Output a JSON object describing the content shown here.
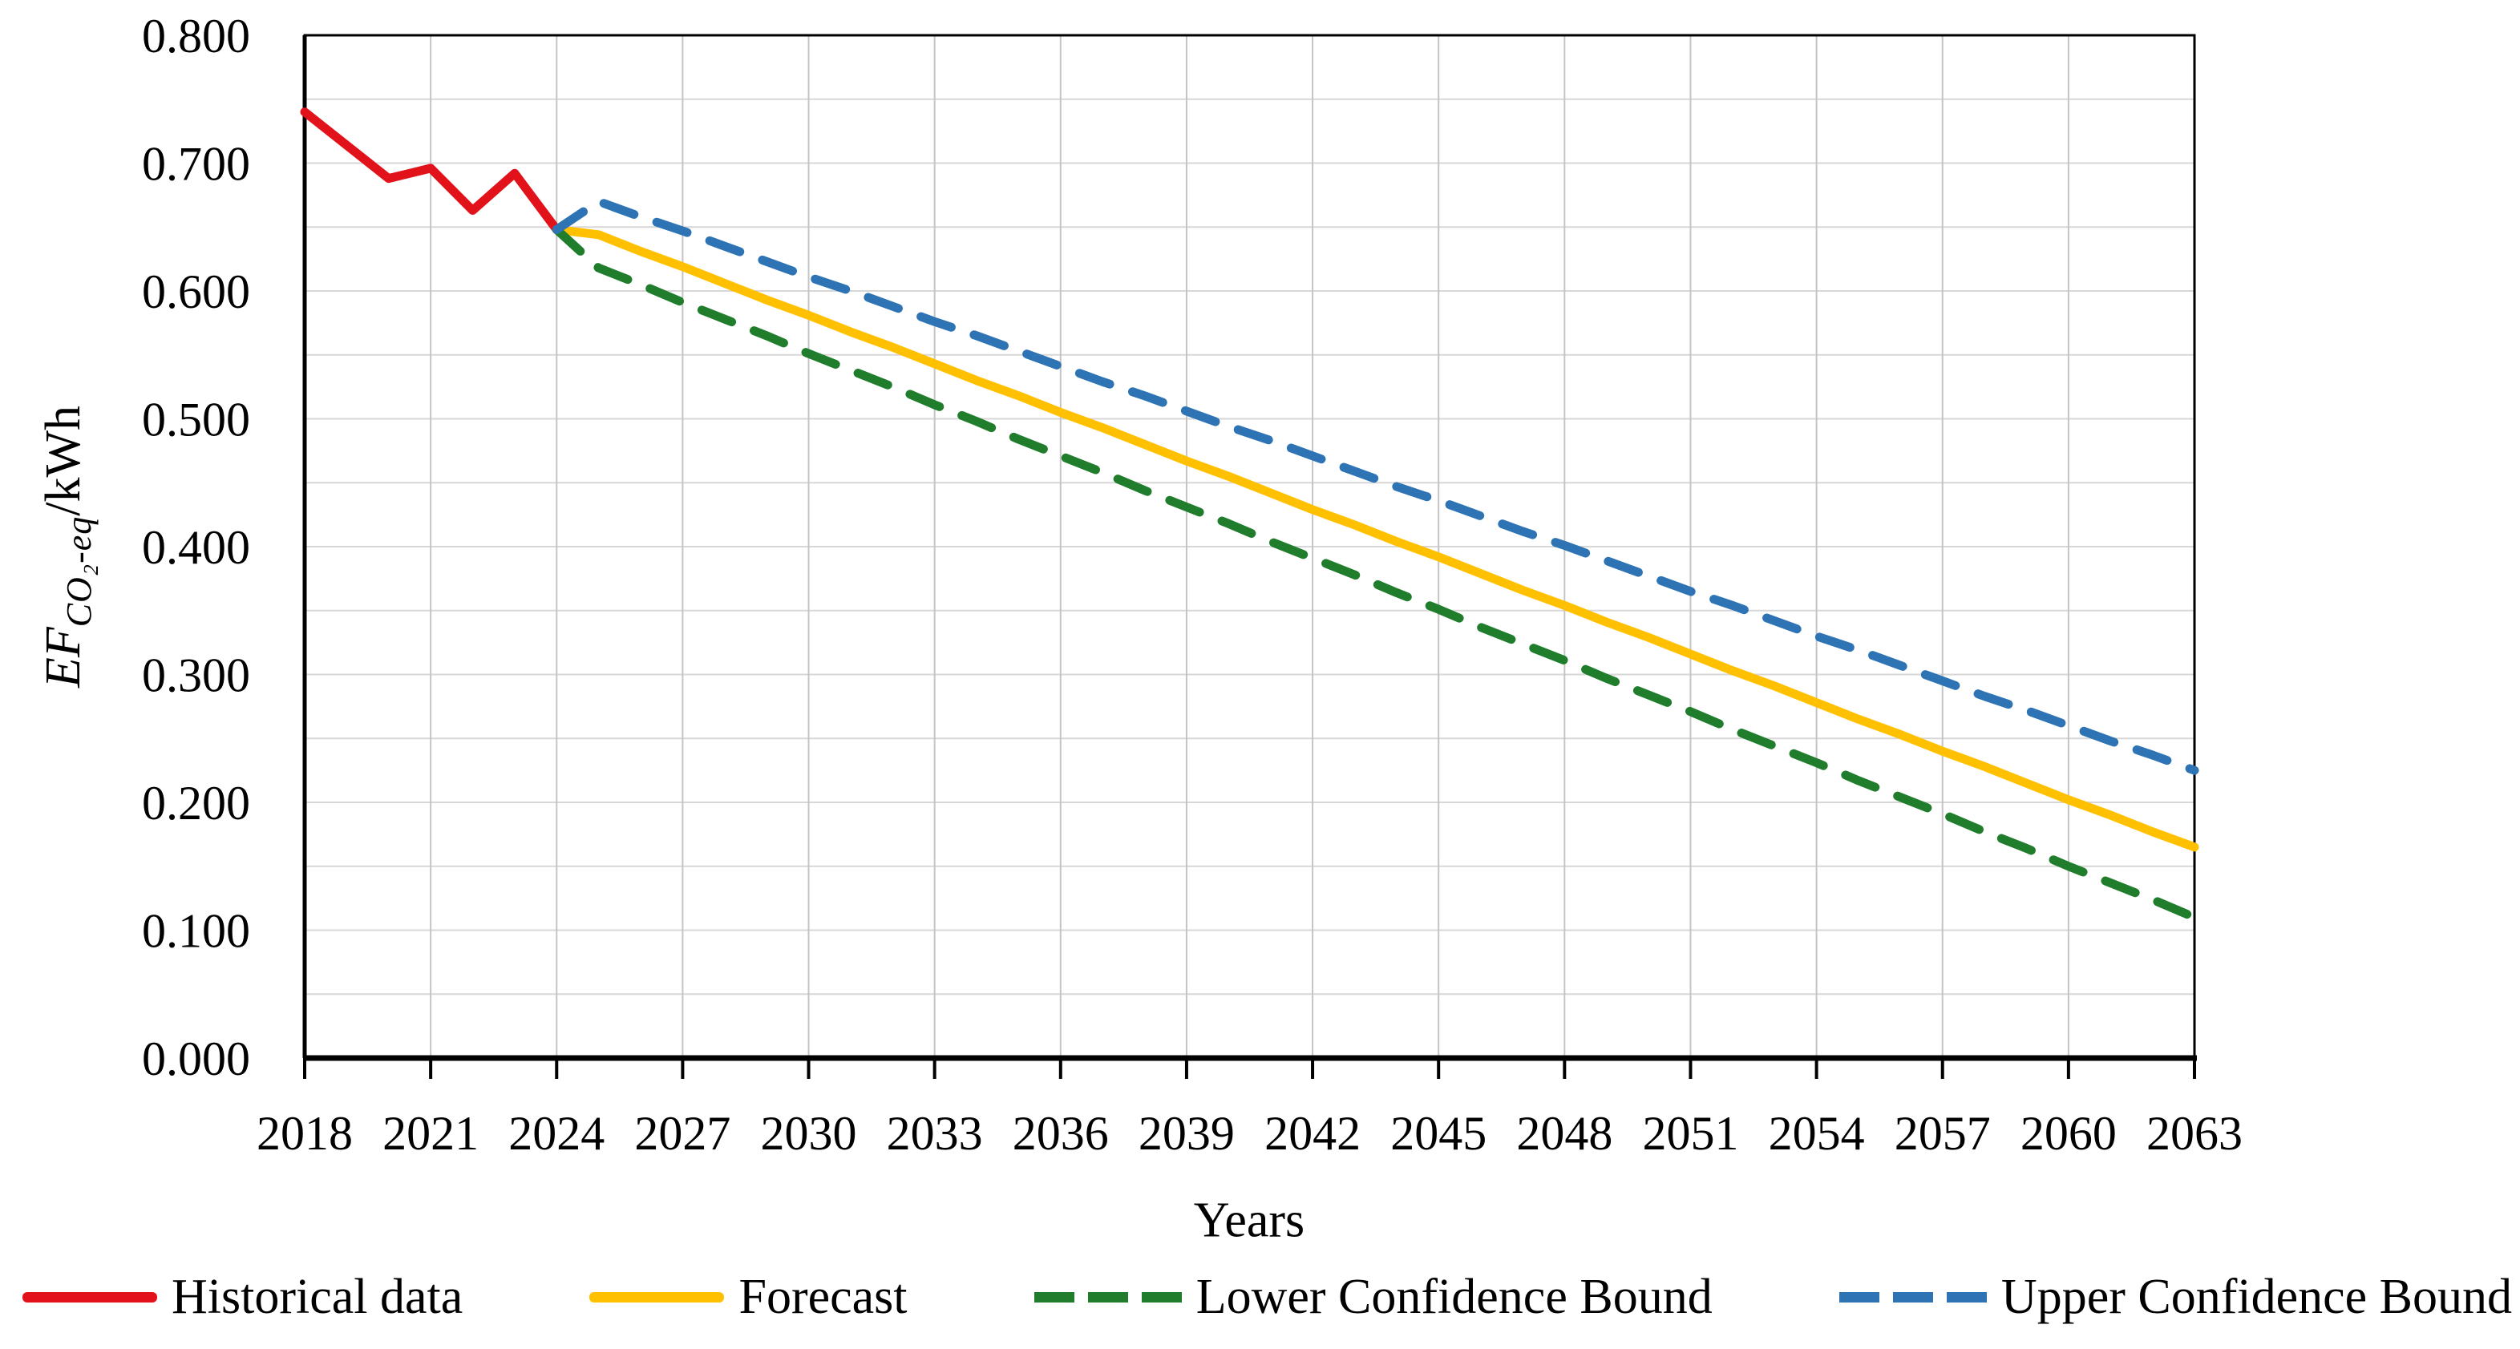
{
  "chart_data": {
    "type": "line",
    "title": "",
    "xlabel": "Years",
    "ylabel": "EF CO₂-eq/kWh",
    "ylabel_parts": {
      "ef": "EF",
      "sub": "CO₂-eq",
      "unit": "/kWh"
    },
    "xlim": [
      2018,
      2063
    ],
    "ylim": [
      0,
      0.8
    ],
    "x_ticks": [
      2018,
      2021,
      2024,
      2027,
      2030,
      2033,
      2036,
      2039,
      2042,
      2045,
      2048,
      2051,
      2054,
      2057,
      2060,
      2063
    ],
    "y_tick_labels": [
      "0.000",
      "0.100",
      "0.200",
      "0.300",
      "0.400",
      "0.500",
      "0.600",
      "0.700",
      "0.800"
    ],
    "grid": {
      "h_step": 0.05,
      "v_step_years": 3,
      "h_color": "#d7d7d7",
      "v_color": "#c4c4c4"
    },
    "axis_color": "#000000",
    "legend_position": "bottom",
    "series": [
      {
        "name": "Historical data",
        "color": "#e2121a",
        "dash": false,
        "x_start": 2018,
        "values": [
          0.74,
          0.714,
          0.688,
          0.696,
          0.663,
          0.692,
          0.648
        ]
      },
      {
        "name": "Forecast",
        "color": "#ffc000",
        "dash": false,
        "x_start": 2024,
        "values": [
          0.648,
          0.644,
          0.631,
          0.619,
          0.606,
          0.593,
          0.581,
          0.568,
          0.556,
          0.543,
          0.53,
          0.518,
          0.505,
          0.493,
          0.48,
          0.467,
          0.455,
          0.442,
          0.429,
          0.417,
          0.404,
          0.392,
          0.379,
          0.366,
          0.354,
          0.341,
          0.329,
          0.316,
          0.303,
          0.291,
          0.278,
          0.265,
          0.253,
          0.24,
          0.228,
          0.215,
          0.202,
          0.19,
          0.177,
          0.165
        ]
      },
      {
        "name": "Lower Confidence Bound",
        "color": "#1f7d2c",
        "dash": true,
        "x_start": 2024,
        "values": [
          0.648,
          0.618,
          0.605,
          0.591,
          0.578,
          0.565,
          0.551,
          0.538,
          0.525,
          0.511,
          0.498,
          0.484,
          0.471,
          0.458,
          0.444,
          0.431,
          0.418,
          0.404,
          0.391,
          0.378,
          0.364,
          0.351,
          0.337,
          0.324,
          0.311,
          0.297,
          0.284,
          0.271,
          0.257,
          0.244,
          0.231,
          0.217,
          0.204,
          0.191,
          0.177,
          0.164,
          0.15,
          0.137,
          0.124,
          0.11
        ]
      },
      {
        "name": "Upper Confidence Bound",
        "color": "#2e74b5",
        "dash": true,
        "x_start": 2024,
        "values": [
          0.648,
          0.67,
          0.658,
          0.647,
          0.635,
          0.623,
          0.611,
          0.6,
          0.588,
          0.576,
          0.565,
          0.553,
          0.541,
          0.529,
          0.518,
          0.506,
          0.494,
          0.483,
          0.471,
          0.459,
          0.447,
          0.436,
          0.424,
          0.412,
          0.401,
          0.389,
          0.377,
          0.365,
          0.354,
          0.342,
          0.33,
          0.319,
          0.307,
          0.295,
          0.283,
          0.272,
          0.26,
          0.248,
          0.237,
          0.225
        ]
      }
    ]
  }
}
